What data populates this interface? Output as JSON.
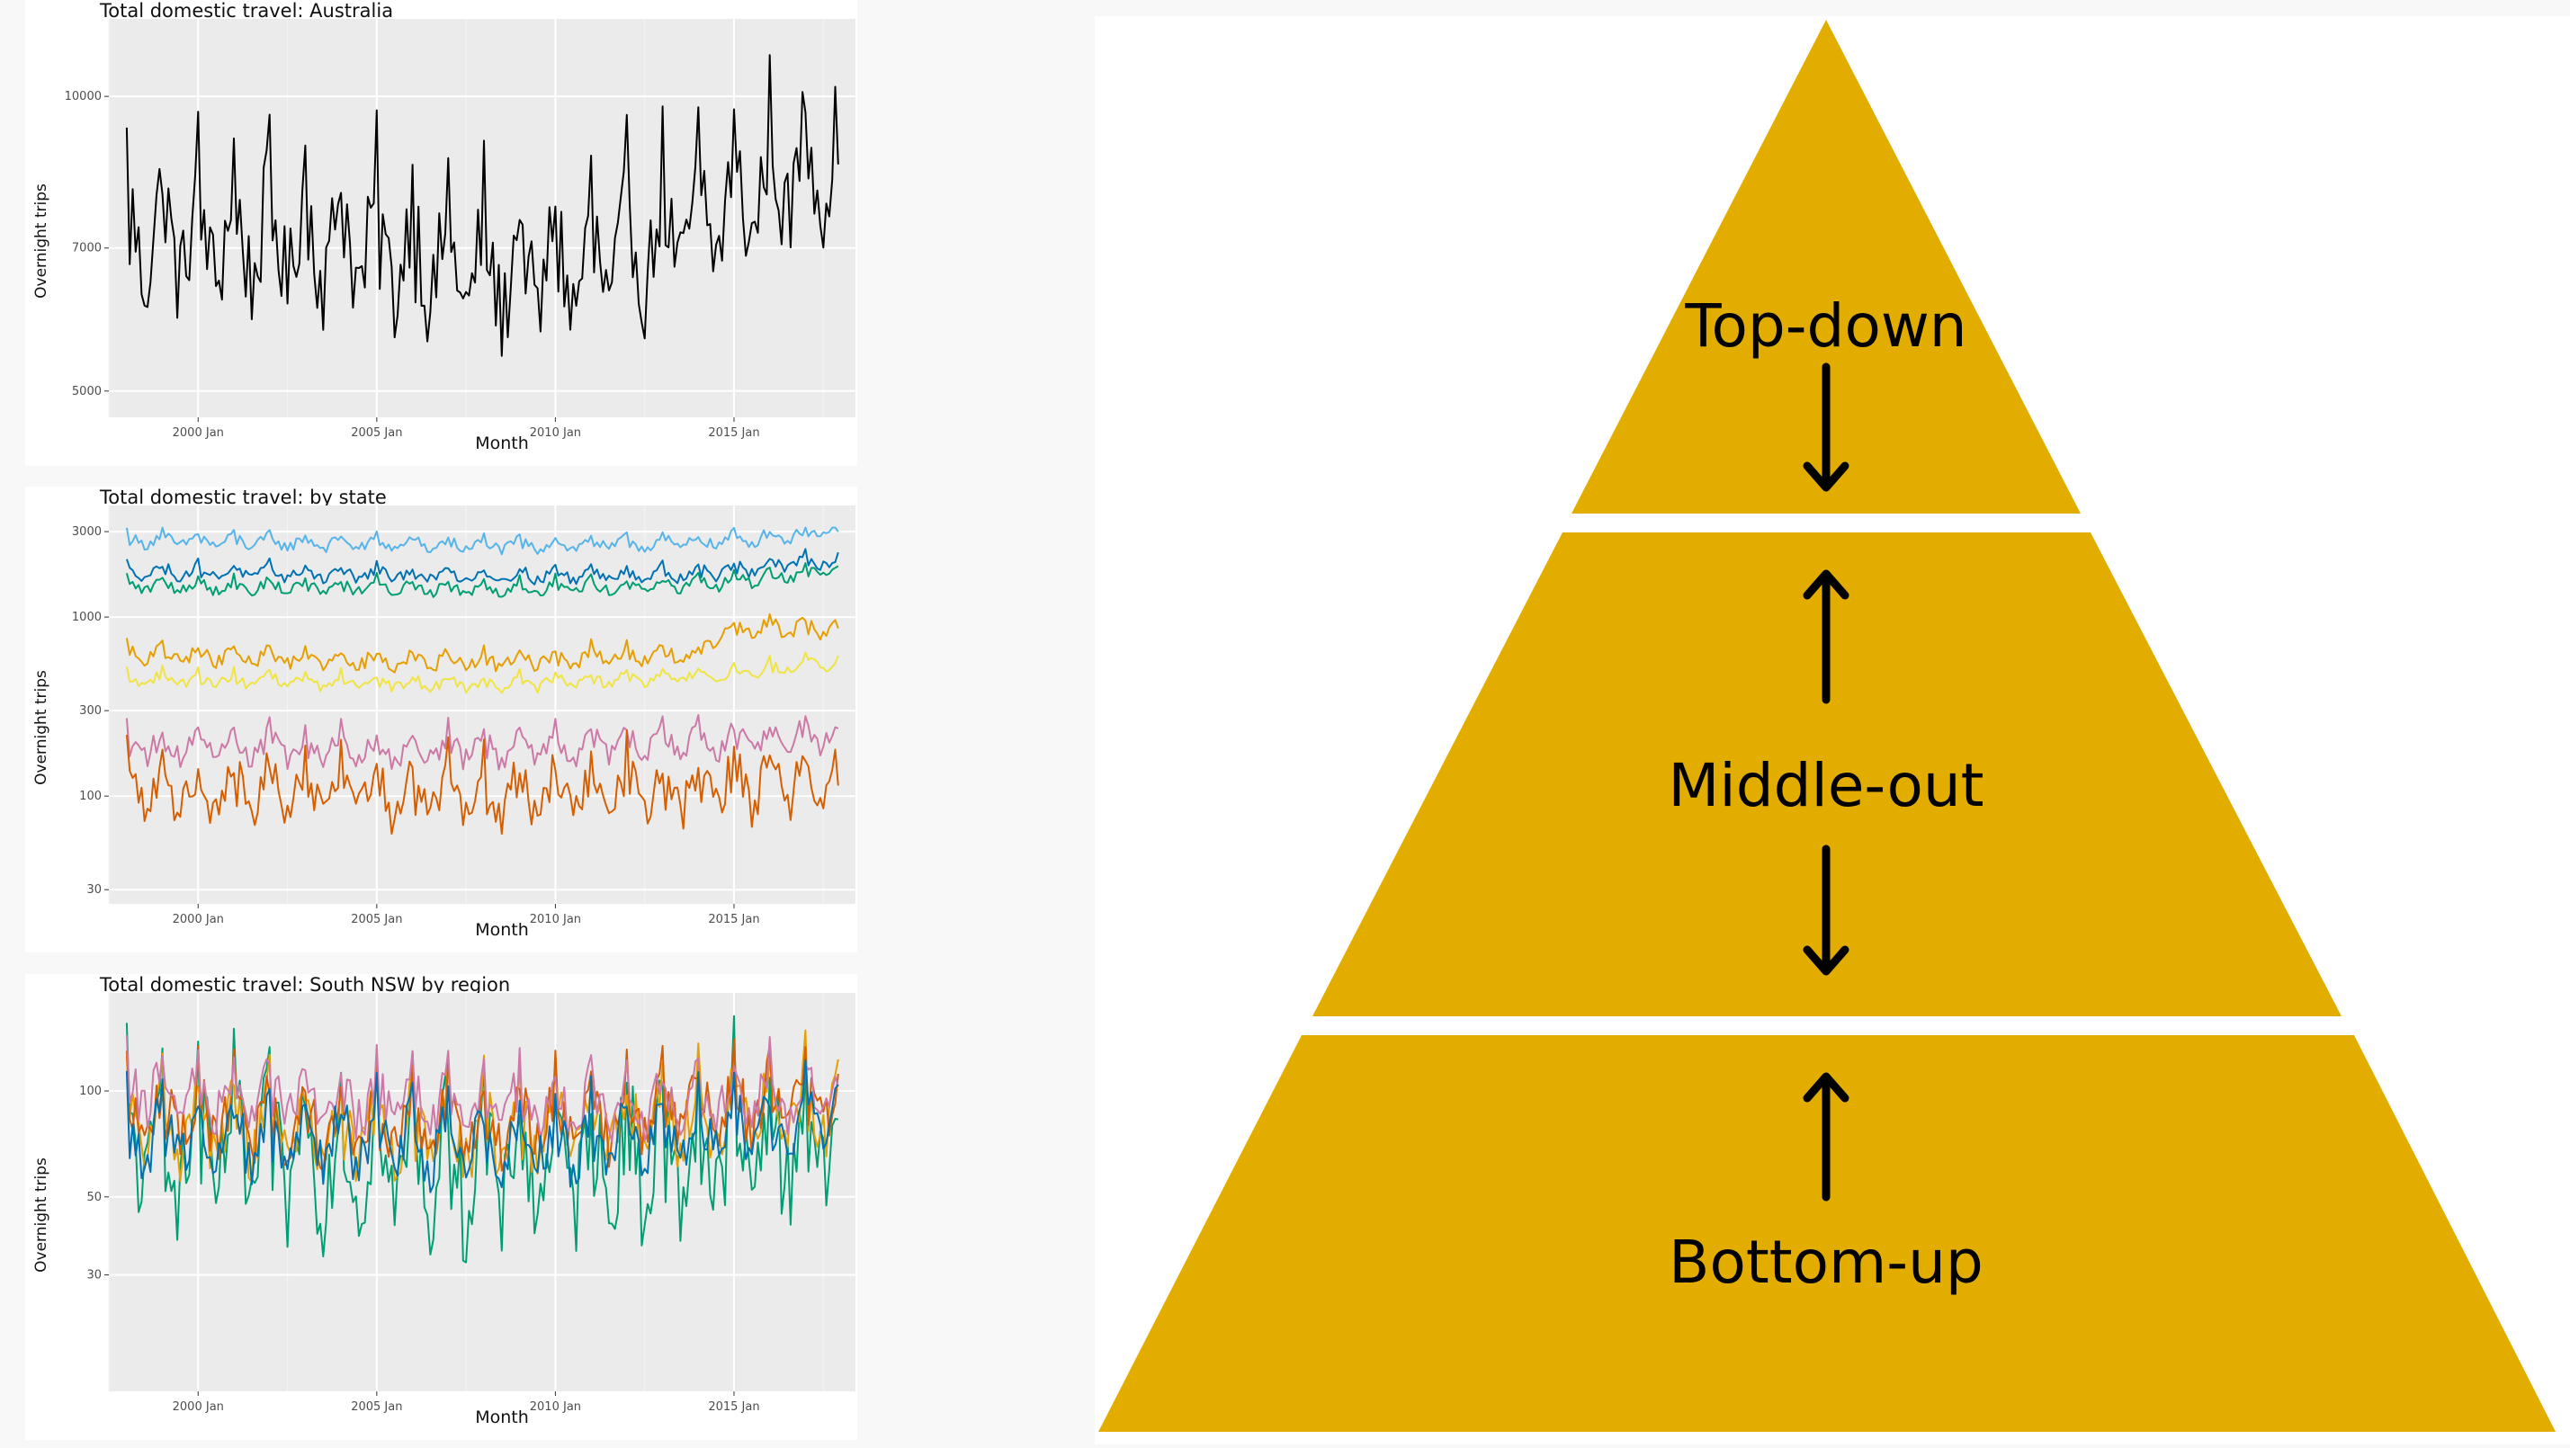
{
  "colors": {
    "grid_bg": "#ebebeb",
    "grid_line": "#ffffff",
    "pyramid_fill": "#e3ad00",
    "arrow": "#000000"
  },
  "charts": [
    {
      "title": "Total domestic travel: Australia",
      "xlabel": "Month",
      "ylabel": "Overnight trips"
    },
    {
      "title": "Total domestic travel: by state",
      "xlabel": "Month",
      "ylabel": "Overnight trips"
    },
    {
      "title": "Total domestic travel: South NSW by region",
      "xlabel": "Month",
      "ylabel": "Overnight trips"
    }
  ],
  "chart_data": [
    {
      "type": "line",
      "title": "Total domestic travel: Australia",
      "xlabel": "Month",
      "ylabel": "Overnight trips",
      "x_range": [
        1998.0,
        2017.92
      ],
      "xlim": [
        1997.5,
        2018.4
      ],
      "x_ticks": [
        2000,
        2005,
        2010,
        2015
      ],
      "x_tick_labels": [
        "2000 Jan",
        "2005 Jan",
        "2010 Jan",
        "2015 Jan"
      ],
      "y_scale": "log",
      "ylim": [
        4700,
        12000
      ],
      "y_ticks": [
        5000,
        7000,
        10000
      ],
      "y_tick_labels": [
        "5000",
        "7000",
        "10000"
      ],
      "grid": true,
      "series": [
        {
          "color": "#000000",
          "base": 7250,
          "trend": [
            [
              1998,
              7200
            ],
            [
              2004,
              7150
            ],
            [
              2008,
              6600
            ],
            [
              2011,
              6700
            ],
            [
              2014,
              7400
            ],
            [
              2018,
              8800
            ]
          ],
          "amp": 0.17
        }
      ]
    },
    {
      "type": "line",
      "title": "Total domestic travel: by state",
      "xlabel": "Month",
      "ylabel": "Overnight trips",
      "x_range": [
        1998.0,
        2017.92
      ],
      "xlim": [
        1997.5,
        2018.4
      ],
      "x_ticks": [
        2000,
        2005,
        2010,
        2015
      ],
      "x_tick_labels": [
        "2000 Jan",
        "2005 Jan",
        "2010 Jan",
        "2015 Jan"
      ],
      "y_scale": "log",
      "ylim": [
        25,
        4200
      ],
      "y_ticks": [
        30,
        100,
        300,
        1000,
        3000
      ],
      "y_tick_labels": [
        "30",
        "100",
        "300",
        "1000",
        "3000"
      ],
      "grid": true,
      "series": [
        {
          "color": "#56b4e9",
          "trend": [
            [
              1998,
              2700
            ],
            [
              2008,
              2500
            ],
            [
              2014,
              2600
            ],
            [
              2018,
              3000
            ]
          ],
          "amp": 0.1
        },
        {
          "color": "#0072b2",
          "trend": [
            [
              1998,
              1800
            ],
            [
              2008,
              1700
            ],
            [
              2014,
              1750
            ],
            [
              2018,
              2100
            ]
          ],
          "amp": 0.1
        },
        {
          "color": "#009e73",
          "trend": [
            [
              1998,
              1500
            ],
            [
              2008,
              1450
            ],
            [
              2014,
              1500
            ],
            [
              2018,
              1850
            ]
          ],
          "amp": 0.1
        },
        {
          "color": "#e69f00",
          "trend": [
            [
              1998,
              620
            ],
            [
              2008,
              560
            ],
            [
              2014,
              620
            ],
            [
              2015,
              850
            ],
            [
              2018,
              870
            ]
          ],
          "amp": 0.13
        },
        {
          "color": "#f0e442",
          "trend": [
            [
              1998,
              450
            ],
            [
              2008,
              420
            ],
            [
              2014,
              460
            ],
            [
              2018,
              560
            ]
          ],
          "amp": 0.1
        },
        {
          "color": "#cc79a7",
          "trend": [
            [
              1998,
              190
            ],
            [
              2008,
              180
            ],
            [
              2014,
              200
            ],
            [
              2018,
              220
            ]
          ],
          "amp": 0.22
        },
        {
          "color": "#d55e00",
          "trend": [
            [
              1998,
              110
            ],
            [
              2008,
              100
            ],
            [
              2014,
              110
            ],
            [
              2018,
              120
            ]
          ],
          "amp": 0.42
        }
      ]
    },
    {
      "type": "line",
      "title": "Total domestic travel: South NSW by region",
      "xlabel": "Month",
      "ylabel": "Overnight trips",
      "x_range": [
        1998.0,
        2017.92
      ],
      "xlim": [
        1997.5,
        2018.4
      ],
      "x_ticks": [
        2000,
        2005,
        2010,
        2015
      ],
      "x_tick_labels": [
        "2000 Jan",
        "2005 Jan",
        "2010 Jan",
        "2015 Jan"
      ],
      "y_scale": "log",
      "ylim": [
        14,
        190
      ],
      "y_ticks": [
        30,
        50,
        100
      ],
      "y_tick_labels": [
        "30",
        "50",
        "100"
      ],
      "grid": true,
      "series": [
        {
          "color": "#009e73",
          "trend": [
            [
              1998,
              70
            ],
            [
              2008,
              60
            ],
            [
              2014,
              65
            ],
            [
              2018,
              75
            ]
          ],
          "amp": 0.5
        },
        {
          "color": "#e69f00",
          "trend": [
            [
              1998,
              80
            ],
            [
              2008,
              75
            ],
            [
              2014,
              85
            ],
            [
              2018,
              90
            ]
          ],
          "amp": 0.28
        },
        {
          "color": "#d55e00",
          "trend": [
            [
              1998,
              85
            ],
            [
              2008,
              78
            ],
            [
              2014,
              90
            ],
            [
              2018,
              95
            ]
          ],
          "amp": 0.26
        },
        {
          "color": "#cc79a7",
          "trend": [
            [
              1998,
              100
            ],
            [
              2008,
              90
            ],
            [
              2014,
              95
            ],
            [
              2018,
              100
            ]
          ],
          "amp": 0.22
        },
        {
          "color": "#0072b2",
          "trend": [
            [
              1998,
              75
            ],
            [
              2008,
              70
            ],
            [
              2014,
              75
            ],
            [
              2018,
              80
            ]
          ],
          "amp": 0.25
        }
      ]
    }
  ],
  "pyramid": {
    "top_label": "Top-down",
    "middle_label": "Middle-out",
    "bottom_label": "Bottom-up"
  }
}
